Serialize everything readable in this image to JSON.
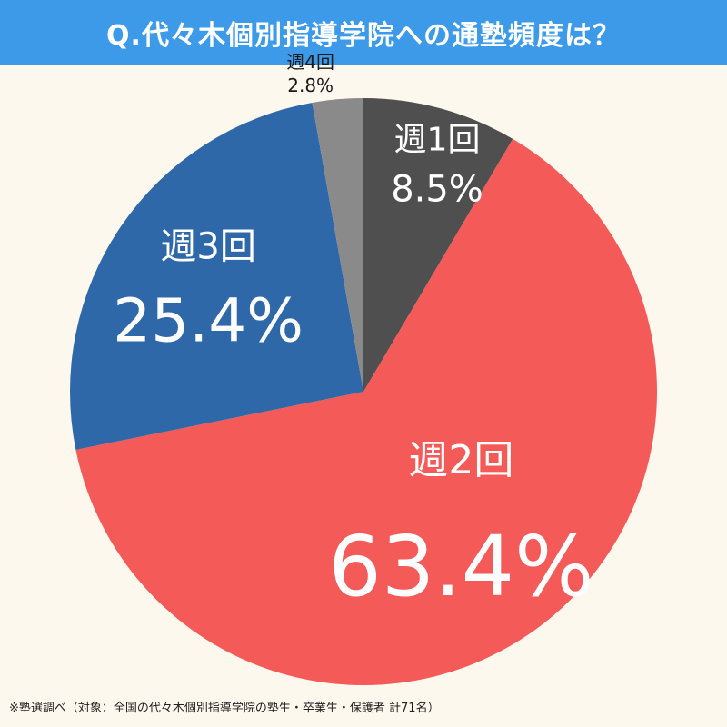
{
  "title": "Q.代々木個別指導学院への通塾頻度は？",
  "footnote": "※塾選調べ（対象：全国の代々木個別指導学院の塾生・卒業生・保護者 計71名）",
  "chart_data": {
    "type": "pie",
    "start": "12 o'clock",
    "direction": "clockwise",
    "slices": [
      {
        "label": "週1回",
        "value": 8.5,
        "value_label": "8.5%",
        "color": "#4f4f4f"
      },
      {
        "label": "週2回",
        "value": 63.4,
        "value_label": "63.4%",
        "color": "#f45a57"
      },
      {
        "label": "週3回",
        "value": 25.4,
        "value_label": "25.4%",
        "color": "#2f68a8"
      },
      {
        "label": "週4回",
        "value": 2.8,
        "value_label": "2.8%",
        "color": "#8a8a8a"
      }
    ]
  }
}
